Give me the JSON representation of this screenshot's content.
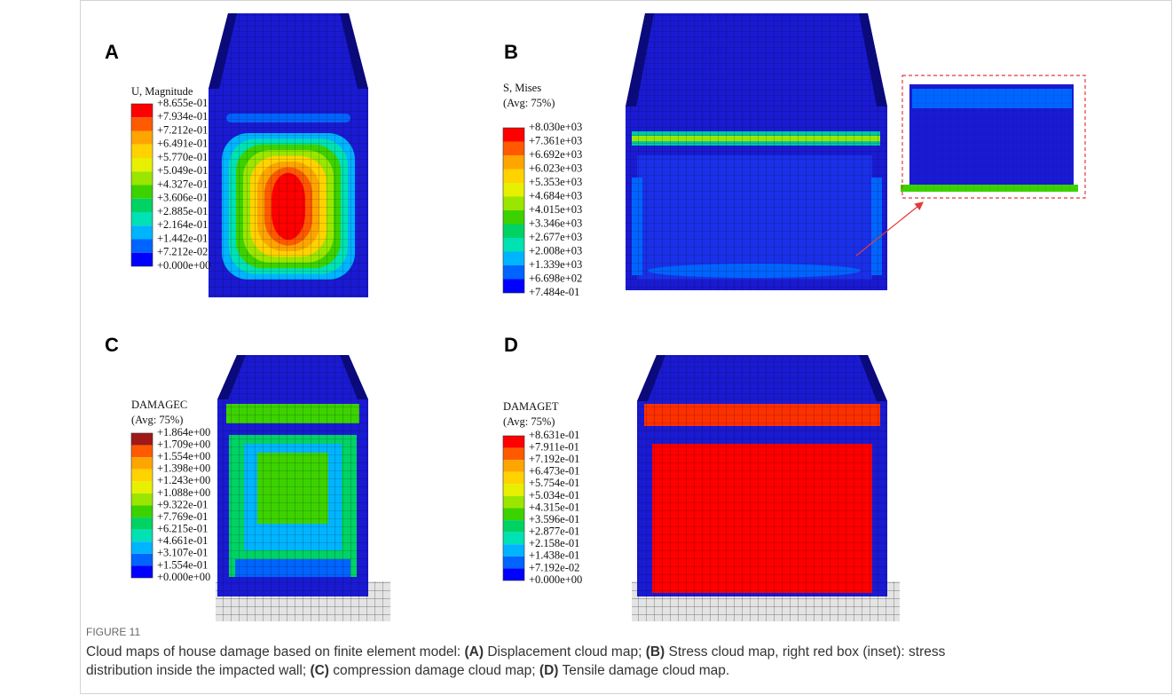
{
  "panels": [
    {
      "label": "A",
      "legend_title": [
        "U, Magnitude"
      ],
      "legend_values": [
        "+8.655e-01",
        "+7.934e-01",
        "+7.212e-01",
        "+6.491e-01",
        "+5.770e-01",
        "+5.049e-01",
        "+4.327e-01",
        "+3.606e-01",
        "+2.885e-01",
        "+2.164e-01",
        "+1.442e-01",
        "+7.212e-02",
        "+0.000e+00"
      ]
    },
    {
      "label": "B",
      "legend_title": [
        "S, Mises",
        "(Avg: 75%)"
      ],
      "legend_values": [
        "+8.030e+03",
        "+7.361e+03",
        "+6.692e+03",
        "+6.023e+03",
        "+5.353e+03",
        "+4.684e+03",
        "+4.015e+03",
        "+3.346e+03",
        "+2.677e+03",
        "+2.008e+03",
        "+1.339e+03",
        "+6.698e+02",
        "+7.484e-01"
      ]
    },
    {
      "label": "C",
      "legend_title": [
        "DAMAGEC",
        "(Avg: 75%)"
      ],
      "legend_values": [
        "+1.864e+00",
        "+1.709e+00",
        "+1.554e+00",
        "+1.398e+00",
        "+1.243e+00",
        "+1.088e+00",
        "+9.322e-01",
        "+7.769e-01",
        "+6.215e-01",
        "+4.661e-01",
        "+3.107e-01",
        "+1.554e-01",
        "+0.000e+00"
      ]
    },
    {
      "label": "D",
      "legend_title": [
        "DAMAGET",
        "(Avg: 75%)"
      ],
      "legend_values": [
        "+8.631e-01",
        "+7.911e-01",
        "+7.192e-01",
        "+6.473e-01",
        "+5.754e-01",
        "+5.034e-01",
        "+4.315e-01",
        "+3.596e-01",
        "+2.877e-01",
        "+2.158e-01",
        "+1.438e-01",
        "+7.192e-02",
        "+0.000e+00"
      ]
    }
  ],
  "figure": {
    "number": "FIGURE 11",
    "caption": [
      "Cloud maps of house damage based on finite element model: ",
      "(A)",
      " Displacement cloud map; ",
      "(B)",
      " Stress cloud map, right red box (inset): stress",
      "distribution inside the impacted wall; ",
      "(C)",
      " compression damage cloud map; ",
      "(D)",
      " Tensile damage cloud map."
    ]
  }
}
